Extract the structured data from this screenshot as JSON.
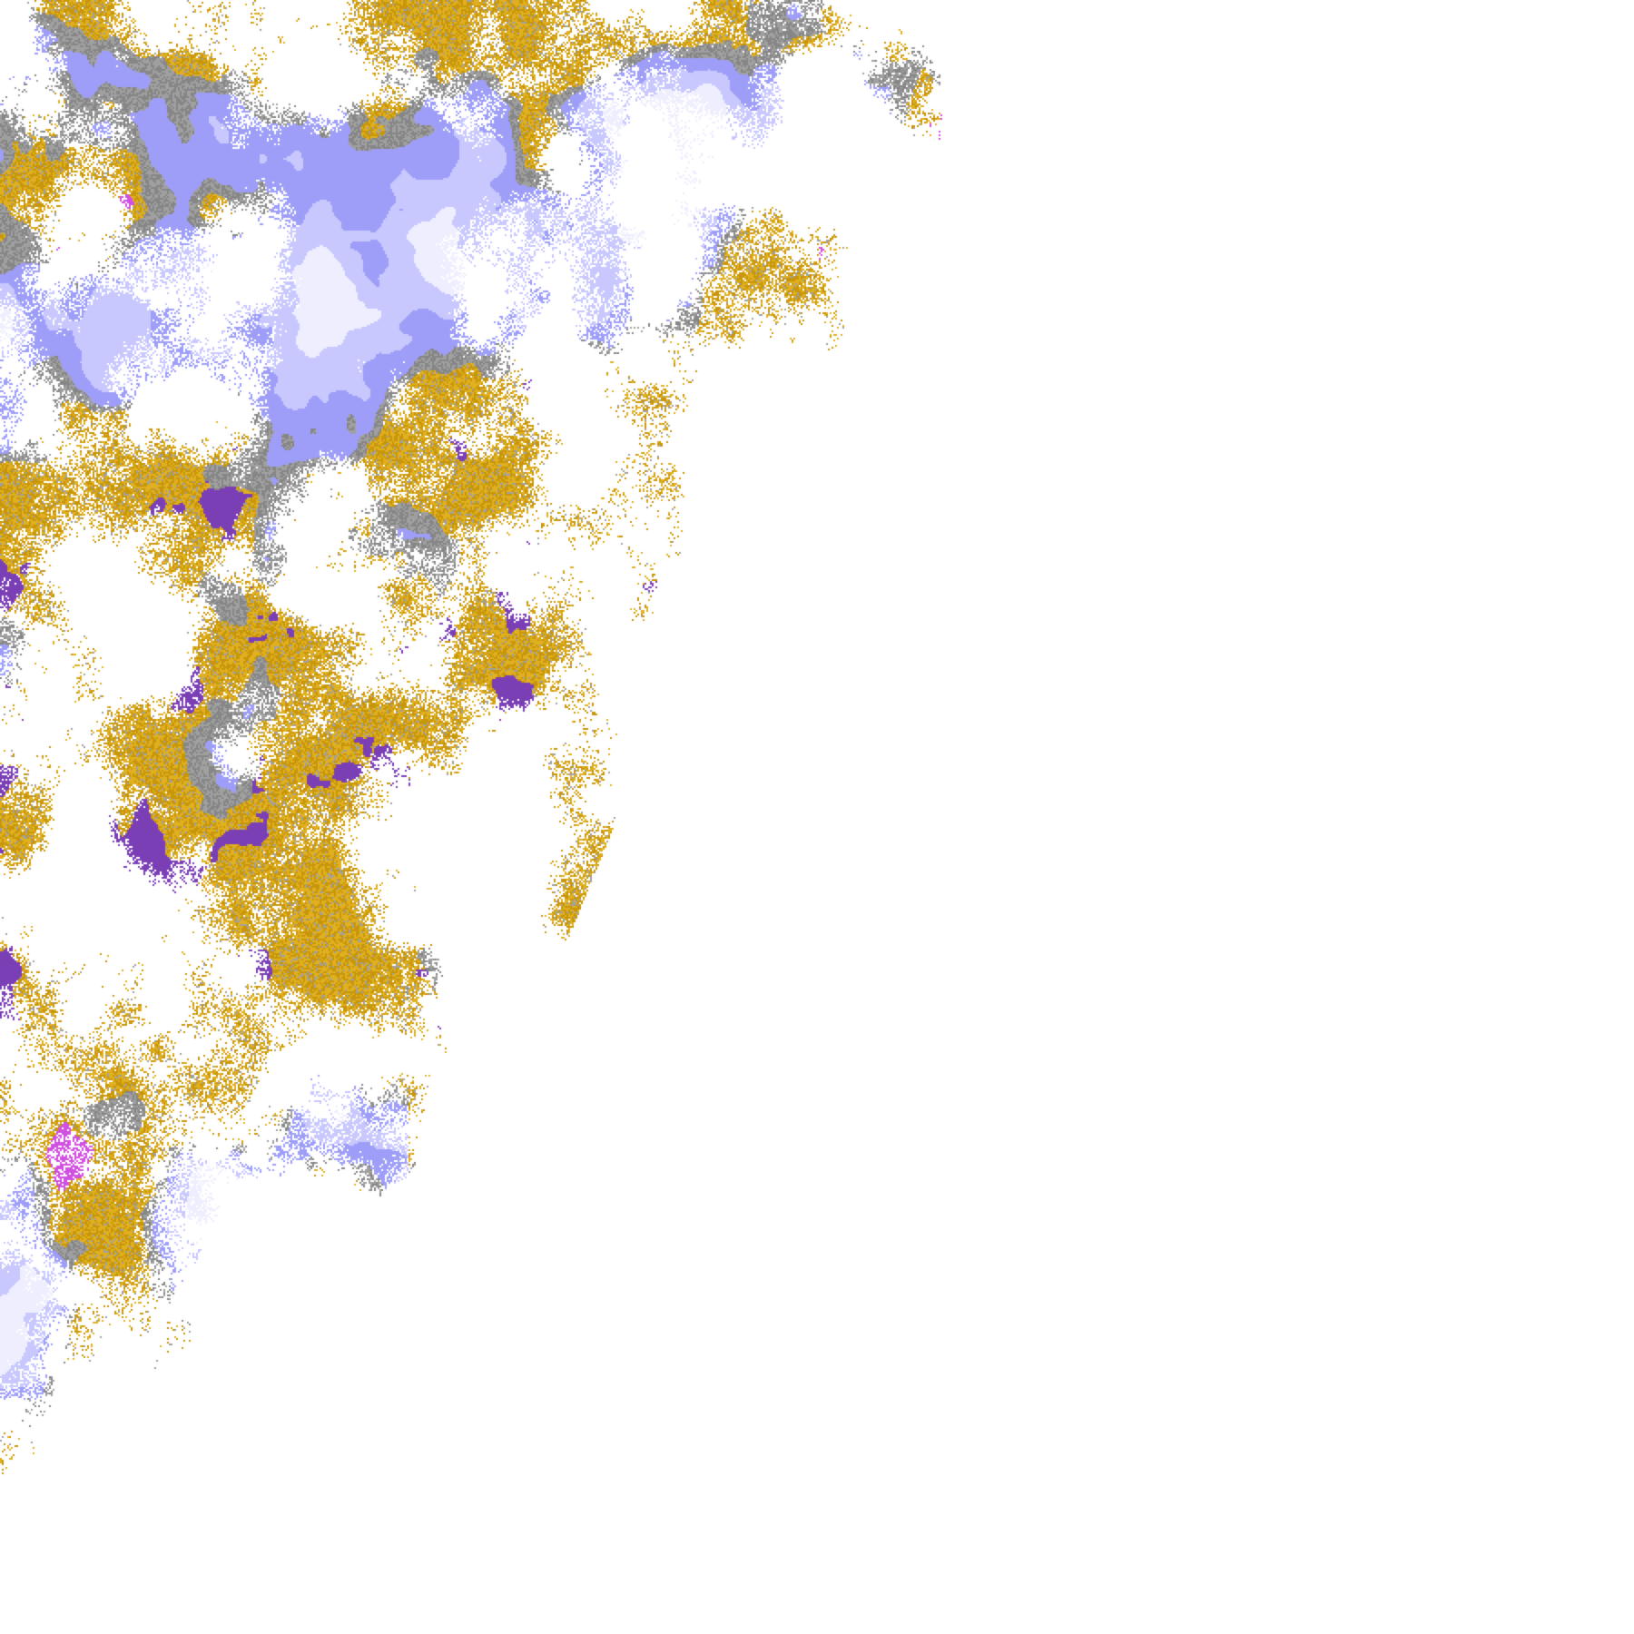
{
  "map": {
    "type": "satellite cloud-type classification imagery",
    "background": "#ffffff",
    "palette": {
      "low_cloud_gold": "#c8960a",
      "low_cloud_gold_light": "#e0b020",
      "mid_cloud_gray": "#a0a0a0",
      "mid_cloud_gray_dark": "#868686",
      "high_cloud_lavender": "#9e9ef8",
      "high_cloud_light": "#c8c8ff",
      "deep_convection_pale": "#eeeeff",
      "overlap_purple": "#7b3fb5",
      "overlap_magenta": "#d050e0"
    }
  }
}
